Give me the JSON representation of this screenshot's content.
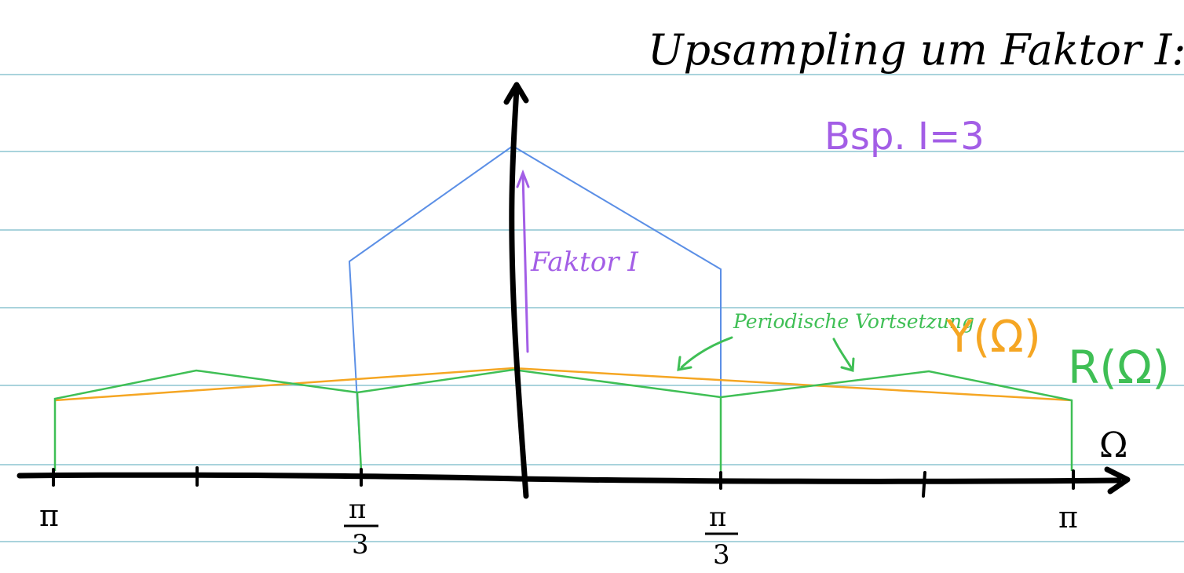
{
  "page": {
    "title": "Upsampling um Faktor I:",
    "example": "Bsp. I=3",
    "gain_annotation": "Faktor I",
    "periodic_annotation": "Periodische Vortsetzung",
    "y_label": "Y(Ω)",
    "r_label": "R(Ω)",
    "x_axis_symbol": "Ω",
    "tick_labels": {
      "left_pi": "π",
      "right_pi": "π",
      "left_third_num": "π",
      "left_third_den": "3",
      "right_third_num": "π",
      "right_third_den": "3"
    }
  },
  "colors": {
    "ruling": "#a9d3dc",
    "axis": "#000000",
    "blue": "#5b8fe6",
    "orange": "#f5a623",
    "green": "#3fbf55",
    "purple": "#a35ee6"
  }
}
